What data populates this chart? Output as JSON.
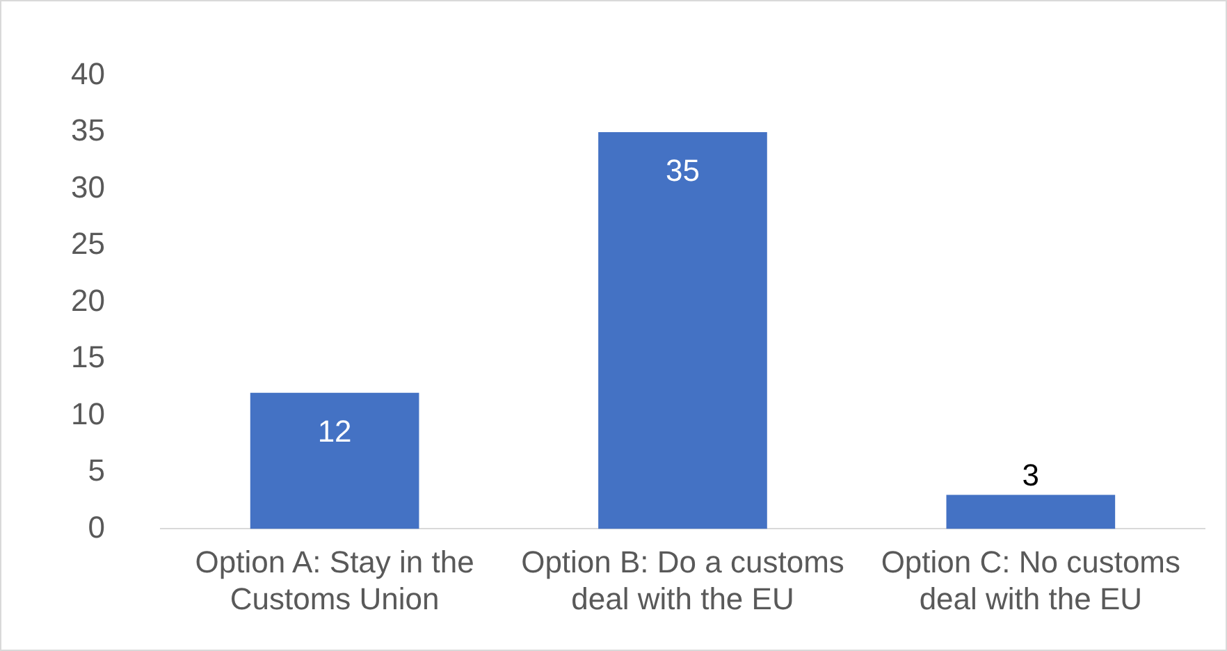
{
  "chart_data": {
    "type": "bar",
    "categories": [
      "Option A: Stay in the Customs Union",
      "Option B: Do a customs deal with the EU",
      "Option C: No customs deal with the EU"
    ],
    "values": [
      12,
      35,
      3
    ],
    "color": "#4472c4",
    "ylim": [
      0,
      40
    ],
    "yticks": [
      0,
      5,
      10,
      15,
      20,
      25,
      30,
      35,
      40
    ],
    "grid": false,
    "legend": false,
    "data_labels": true
  }
}
